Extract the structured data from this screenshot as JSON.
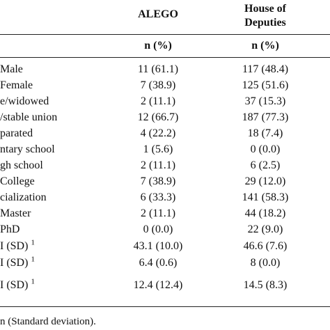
{
  "header": {
    "col_alego": "ALEGO",
    "col_house_line1": "House of",
    "col_house_line2": "Deputies",
    "sub_alego": "n (%)",
    "sub_house": "n (%)"
  },
  "rows": [
    {
      "label": "Male",
      "alego": "11 (61.1)",
      "house": "117 (48.4)",
      "sup": ""
    },
    {
      "label": "Female",
      "alego": "7 (38.9)",
      "house": "125 (51.6)",
      "sup": ""
    },
    {
      "label": "e/widowed",
      "alego": "2 (11.1)",
      "house": "37 (15.3)",
      "sup": ""
    },
    {
      "label": "/stable union",
      "alego": "12 (66.7)",
      "house": "187 (77.3)",
      "sup": ""
    },
    {
      "label": "parated",
      "alego": "4 (22.2)",
      "house": "18 (7.4)",
      "sup": ""
    },
    {
      "label": "ntary school",
      "alego": "1 (5.6)",
      "house": "0 (0.0)",
      "sup": ""
    },
    {
      "label": "gh school",
      "alego": "2 (11.1)",
      "house": "6 (2.5)",
      "sup": ""
    },
    {
      "label": "College",
      "alego": "7 (38.9)",
      "house": "29 (12.0)",
      "sup": ""
    },
    {
      "label": "cialization",
      "alego": "6 (33.3)",
      "house": "141 (58.3)",
      "sup": ""
    },
    {
      "label": "Master",
      "alego": "2 (11.1)",
      "house": "44 (18.2)",
      "sup": ""
    },
    {
      "label": "PhD",
      "alego": "0 (0.0)",
      "house": "22 (9.0)",
      "sup": ""
    },
    {
      "label": "I (SD)",
      "alego": "43.1 (10.0)",
      "house": "46.6 (7.6)",
      "sup": "1"
    },
    {
      "label": "I (SD)",
      "alego": "6.4 (0.6)",
      "house": "8 (0.0)",
      "sup": "1"
    },
    {
      "label": "I (SD)",
      "alego": "12.4 (12.4)",
      "house": "14.5 (8.3)",
      "sup": "1"
    }
  ],
  "footnote": "n (Standard deviation)."
}
